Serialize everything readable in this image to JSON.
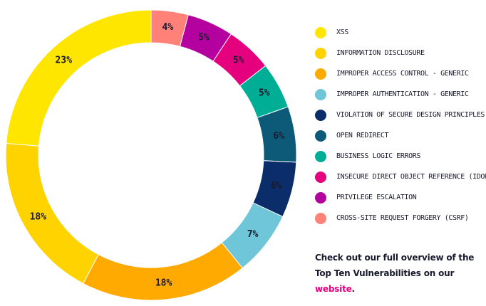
{
  "chart_data": {
    "type": "pie",
    "donut": true,
    "categories": [
      "XSS",
      "Information Disclosure",
      "Improper Access Control - Generic",
      "Improper Authentication - Generic",
      "Violation of Secure Design Principles",
      "Open Redirect",
      "Business Logic Errors",
      "Insecure Direct Object Reference (IDOR)",
      "Privilege Escalation",
      "Cross-Site Request Forgery (CSRF)"
    ],
    "values": [
      23,
      18,
      18,
      7,
      6,
      6,
      5,
      5,
      5,
      4
    ],
    "labels": [
      "23%",
      "18%",
      "18%",
      "7%",
      "6%",
      "6%",
      "5%",
      "5%",
      "5%",
      "4%"
    ],
    "colors": [
      "#ffe600",
      "#ffd300",
      "#ffaa00",
      "#6ec6d8",
      "#0b2e6b",
      "#0d5a78",
      "#00ae95",
      "#e5007d",
      "#b4009e",
      "#ff8178"
    ],
    "legend_position": "right"
  },
  "footnote": {
    "text": "Check out our full overview of the Top Ten Vulnerabilities on our ",
    "link_text": "website",
    "end": "."
  }
}
